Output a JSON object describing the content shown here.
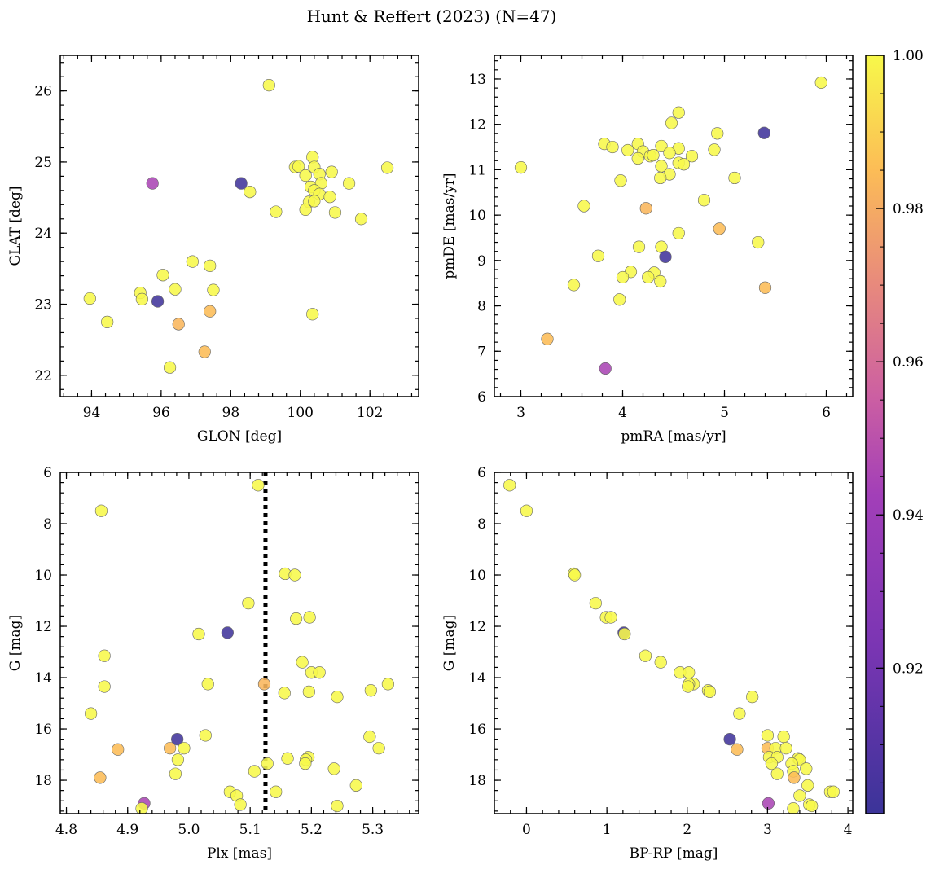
{
  "figure": {
    "title": "Hunt & Reffert (2023) (N=47)"
  },
  "colorbar": {
    "min": 0.901,
    "max": 1.0,
    "ticks": [
      0.92,
      0.94,
      0.96,
      0.98,
      1.0
    ],
    "tick_labels": [
      "0.92",
      "0.94",
      "0.96",
      "0.98",
      "1.00"
    ]
  },
  "chart_data": [
    {
      "type": "scatter",
      "id": "glon-glat",
      "xlabel": "GLON [deg]",
      "ylabel": "GLAT [deg]",
      "xlim": [
        93.1,
        103.4
      ],
      "ylim": [
        21.7,
        26.5
      ],
      "y_inverted": false,
      "xticks": [
        94,
        96,
        98,
        100,
        102
      ],
      "yticks": [
        22,
        23,
        24,
        25,
        26
      ],
      "points": [
        {
          "x": 99.1,
          "y": 26.08,
          "c": 1.0
        },
        {
          "x": 102.5,
          "y": 24.92,
          "c": 1.0
        },
        {
          "x": 99.85,
          "y": 24.93,
          "c": 1.0
        },
        {
          "x": 99.95,
          "y": 24.94,
          "c": 1.0
        },
        {
          "x": 100.35,
          "y": 25.07,
          "c": 1.0
        },
        {
          "x": 100.4,
          "y": 24.93,
          "c": 1.0
        },
        {
          "x": 100.15,
          "y": 24.81,
          "c": 1.0
        },
        {
          "x": 100.55,
          "y": 24.83,
          "c": 1.0
        },
        {
          "x": 100.9,
          "y": 24.86,
          "c": 1.0
        },
        {
          "x": 100.3,
          "y": 24.65,
          "c": 1.0
        },
        {
          "x": 100.6,
          "y": 24.7,
          "c": 1.0
        },
        {
          "x": 100.4,
          "y": 24.6,
          "c": 1.0
        },
        {
          "x": 100.55,
          "y": 24.55,
          "c": 1.0
        },
        {
          "x": 100.85,
          "y": 24.51,
          "c": 1.0
        },
        {
          "x": 101.4,
          "y": 24.7,
          "c": 1.0
        },
        {
          "x": 100.25,
          "y": 24.44,
          "c": 1.0
        },
        {
          "x": 100.4,
          "y": 24.45,
          "c": 1.0
        },
        {
          "x": 100.15,
          "y": 24.33,
          "c": 1.0
        },
        {
          "x": 101.0,
          "y": 24.29,
          "c": 1.0
        },
        {
          "x": 101.75,
          "y": 24.2,
          "c": 1.0
        },
        {
          "x": 99.3,
          "y": 24.3,
          "c": 1.0
        },
        {
          "x": 98.55,
          "y": 24.58,
          "c": 1.0
        },
        {
          "x": 98.3,
          "y": 24.7,
          "c": 0.903
        },
        {
          "x": 95.75,
          "y": 24.7,
          "c": 0.945
        },
        {
          "x": 96.9,
          "y": 23.6,
          "c": 1.0
        },
        {
          "x": 97.4,
          "y": 23.54,
          "c": 1.0
        },
        {
          "x": 96.05,
          "y": 23.41,
          "c": 1.0
        },
        {
          "x": 96.4,
          "y": 23.21,
          "c": 1.0
        },
        {
          "x": 97.5,
          "y": 23.2,
          "c": 1.0
        },
        {
          "x": 95.4,
          "y": 23.16,
          "c": 1.0
        },
        {
          "x": 95.45,
          "y": 23.07,
          "c": 1.0
        },
        {
          "x": 93.95,
          "y": 23.08,
          "c": 1.0
        },
        {
          "x": 95.9,
          "y": 23.04,
          "c": 0.903
        },
        {
          "x": 97.4,
          "y": 22.9,
          "c": 0.985
        },
        {
          "x": 100.35,
          "y": 22.86,
          "c": 1.0
        },
        {
          "x": 94.45,
          "y": 22.75,
          "c": 1.0
        },
        {
          "x": 96.5,
          "y": 22.72,
          "c": 0.983
        },
        {
          "x": 97.25,
          "y": 22.33,
          "c": 0.985
        },
        {
          "x": 96.25,
          "y": 22.11,
          "c": 1.0
        }
      ]
    },
    {
      "type": "scatter",
      "id": "pmra-pmde",
      "xlabel": "pmRA [mas/yr]",
      "ylabel": "pmDE [mas/yr]",
      "xlim": [
        2.74,
        6.26
      ],
      "ylim": [
        6.0,
        13.52
      ],
      "y_inverted": false,
      "xticks": [
        3,
        4,
        5,
        6
      ],
      "yticks": [
        6,
        7,
        8,
        9,
        10,
        11,
        12,
        13
      ],
      "points": [
        {
          "x": 5.95,
          "y": 12.92,
          "c": 1.0
        },
        {
          "x": 4.55,
          "y": 12.26,
          "c": 1.0
        },
        {
          "x": 4.48,
          "y": 12.03,
          "c": 1.0
        },
        {
          "x": 5.39,
          "y": 11.81,
          "c": 0.903
        },
        {
          "x": 4.93,
          "y": 11.8,
          "c": 1.0
        },
        {
          "x": 3.82,
          "y": 11.57,
          "c": 1.0
        },
        {
          "x": 4.15,
          "y": 11.57,
          "c": 1.0
        },
        {
          "x": 3.9,
          "y": 11.5,
          "c": 1.0
        },
        {
          "x": 4.38,
          "y": 11.52,
          "c": 1.0
        },
        {
          "x": 4.55,
          "y": 11.47,
          "c": 1.0
        },
        {
          "x": 4.05,
          "y": 11.43,
          "c": 1.0
        },
        {
          "x": 4.2,
          "y": 11.4,
          "c": 1.0
        },
        {
          "x": 4.9,
          "y": 11.44,
          "c": 1.0
        },
        {
          "x": 4.46,
          "y": 11.37,
          "c": 1.0
        },
        {
          "x": 4.27,
          "y": 11.3,
          "c": 1.0
        },
        {
          "x": 4.3,
          "y": 11.32,
          "c": 1.0
        },
        {
          "x": 4.68,
          "y": 11.3,
          "c": 1.0
        },
        {
          "x": 4.15,
          "y": 11.25,
          "c": 1.0
        },
        {
          "x": 4.55,
          "y": 11.15,
          "c": 1.0
        },
        {
          "x": 4.6,
          "y": 11.12,
          "c": 1.0
        },
        {
          "x": 4.38,
          "y": 11.08,
          "c": 1.0
        },
        {
          "x": 3.0,
          "y": 11.05,
          "c": 1.0
        },
        {
          "x": 4.46,
          "y": 10.9,
          "c": 1.0
        },
        {
          "x": 4.37,
          "y": 10.82,
          "c": 1.0
        },
        {
          "x": 5.1,
          "y": 10.82,
          "c": 1.0
        },
        {
          "x": 3.98,
          "y": 10.76,
          "c": 1.0
        },
        {
          "x": 4.8,
          "y": 10.33,
          "c": 1.0
        },
        {
          "x": 3.62,
          "y": 10.2,
          "c": 1.0
        },
        {
          "x": 4.23,
          "y": 10.15,
          "c": 0.983
        },
        {
          "x": 4.95,
          "y": 9.7,
          "c": 0.985
        },
        {
          "x": 4.55,
          "y": 9.6,
          "c": 1.0
        },
        {
          "x": 5.33,
          "y": 9.4,
          "c": 1.0
        },
        {
          "x": 4.16,
          "y": 9.3,
          "c": 1.0
        },
        {
          "x": 4.38,
          "y": 9.3,
          "c": 1.0
        },
        {
          "x": 3.76,
          "y": 9.1,
          "c": 1.0
        },
        {
          "x": 4.42,
          "y": 9.08,
          "c": 0.903
        },
        {
          "x": 4.08,
          "y": 8.75,
          "c": 1.0
        },
        {
          "x": 4.31,
          "y": 8.73,
          "c": 1.0
        },
        {
          "x": 4.0,
          "y": 8.63,
          "c": 1.0
        },
        {
          "x": 4.25,
          "y": 8.63,
          "c": 1.0
        },
        {
          "x": 4.37,
          "y": 8.54,
          "c": 1.0
        },
        {
          "x": 3.52,
          "y": 8.46,
          "c": 1.0
        },
        {
          "x": 5.4,
          "y": 8.4,
          "c": 0.985
        },
        {
          "x": 3.97,
          "y": 8.14,
          "c": 1.0
        },
        {
          "x": 3.26,
          "y": 7.27,
          "c": 0.985
        },
        {
          "x": 3.83,
          "y": 6.62,
          "c": 0.945
        }
      ]
    },
    {
      "type": "scatter",
      "id": "plx-g",
      "xlabel": "Plx [mas]",
      "ylabel": "G [mag]",
      "xlim": [
        4.79,
        5.375
      ],
      "ylim": [
        6.0,
        19.3
      ],
      "y_inverted": true,
      "xticks": [
        4.8,
        4.9,
        5.0,
        5.1,
        5.2,
        5.3
      ],
      "xtick_labels": [
        "4.8",
        "4.9",
        "5.0",
        "5.1",
        "5.2",
        "5.3"
      ],
      "yticks": [
        6,
        8,
        10,
        12,
        14,
        16,
        18
      ],
      "vline": {
        "x": 5.125,
        "style": "dotted"
      },
      "points": [
        {
          "x": 5.113,
          "y": 6.5,
          "c": 1.0
        },
        {
          "x": 4.857,
          "y": 7.5,
          "c": 1.0
        },
        {
          "x": 5.157,
          "y": 9.95,
          "c": 1.0
        },
        {
          "x": 5.173,
          "y": 10.0,
          "c": 1.0
        },
        {
          "x": 5.097,
          "y": 11.1,
          "c": 1.0
        },
        {
          "x": 5.197,
          "y": 11.65,
          "c": 1.0
        },
        {
          "x": 5.175,
          "y": 11.7,
          "c": 1.0
        },
        {
          "x": 5.063,
          "y": 12.25,
          "c": 0.903
        },
        {
          "x": 5.016,
          "y": 12.3,
          "c": 1.0
        },
        {
          "x": 4.862,
          "y": 13.15,
          "c": 1.0
        },
        {
          "x": 5.185,
          "y": 13.4,
          "c": 1.0
        },
        {
          "x": 5.2,
          "y": 13.8,
          "c": 1.0
        },
        {
          "x": 5.213,
          "y": 13.8,
          "c": 1.0
        },
        {
          "x": 5.123,
          "y": 14.25,
          "c": 0.983
        },
        {
          "x": 5.031,
          "y": 14.25,
          "c": 1.0
        },
        {
          "x": 5.325,
          "y": 14.25,
          "c": 1.0
        },
        {
          "x": 4.862,
          "y": 14.35,
          "c": 1.0
        },
        {
          "x": 5.297,
          "y": 14.5,
          "c": 1.0
        },
        {
          "x": 5.196,
          "y": 14.55,
          "c": 1.0
        },
        {
          "x": 5.156,
          "y": 14.6,
          "c": 1.0
        },
        {
          "x": 5.242,
          "y": 14.75,
          "c": 1.0
        },
        {
          "x": 4.84,
          "y": 15.4,
          "c": 1.0
        },
        {
          "x": 5.027,
          "y": 16.25,
          "c": 1.0
        },
        {
          "x": 5.295,
          "y": 16.3,
          "c": 1.0
        },
        {
          "x": 4.981,
          "y": 16.4,
          "c": 0.903
        },
        {
          "x": 4.969,
          "y": 16.75,
          "c": 0.985
        },
        {
          "x": 4.992,
          "y": 16.75,
          "c": 1.0
        },
        {
          "x": 5.31,
          "y": 16.75,
          "c": 1.0
        },
        {
          "x": 4.884,
          "y": 16.8,
          "c": 0.985
        },
        {
          "x": 5.195,
          "y": 17.1,
          "c": 1.0
        },
        {
          "x": 5.161,
          "y": 17.15,
          "c": 1.0
        },
        {
          "x": 5.191,
          "y": 17.2,
          "c": 1.0
        },
        {
          "x": 4.982,
          "y": 17.2,
          "c": 1.0
        },
        {
          "x": 5.19,
          "y": 17.35,
          "c": 1.0
        },
        {
          "x": 5.128,
          "y": 17.35,
          "c": 1.0
        },
        {
          "x": 5.237,
          "y": 17.55,
          "c": 1.0
        },
        {
          "x": 5.107,
          "y": 17.65,
          "c": 1.0
        },
        {
          "x": 4.978,
          "y": 17.75,
          "c": 1.0
        },
        {
          "x": 4.855,
          "y": 17.9,
          "c": 0.985
        },
        {
          "x": 5.273,
          "y": 18.2,
          "c": 1.0
        },
        {
          "x": 5.067,
          "y": 18.45,
          "c": 1.0
        },
        {
          "x": 5.142,
          "y": 18.45,
          "c": 1.0
        },
        {
          "x": 5.078,
          "y": 18.6,
          "c": 1.0
        },
        {
          "x": 5.084,
          "y": 18.95,
          "c": 1.0
        },
        {
          "x": 5.242,
          "y": 19.0,
          "c": 1.0
        },
        {
          "x": 4.927,
          "y": 18.9,
          "c": 0.945
        },
        {
          "x": 4.923,
          "y": 19.1,
          "c": 1.0
        }
      ]
    },
    {
      "type": "scatter",
      "id": "bprp-g",
      "xlabel": "BP-RP [mag]",
      "ylabel": "G [mag]",
      "xlim": [
        -0.4,
        4.06
      ],
      "ylim": [
        6.0,
        19.3
      ],
      "y_inverted": true,
      "xticks": [
        0,
        1,
        2,
        3,
        4
      ],
      "yticks": [
        6,
        8,
        10,
        12,
        14,
        16,
        18
      ],
      "points": [
        {
          "x": -0.21,
          "y": 6.5,
          "c": 1.0
        },
        {
          "x": 0.0,
          "y": 7.5,
          "c": 1.0
        },
        {
          "x": 0.59,
          "y": 9.95,
          "c": 1.0
        },
        {
          "x": 0.6,
          "y": 10.0,
          "c": 1.0
        },
        {
          "x": 0.86,
          "y": 11.1,
          "c": 1.0
        },
        {
          "x": 0.99,
          "y": 11.65,
          "c": 1.0
        },
        {
          "x": 1.05,
          "y": 11.65,
          "c": 1.0
        },
        {
          "x": 1.21,
          "y": 12.25,
          "c": 0.903
        },
        {
          "x": 1.22,
          "y": 12.3,
          "c": 1.0
        },
        {
          "x": 1.48,
          "y": 13.15,
          "c": 1.0
        },
        {
          "x": 1.67,
          "y": 13.4,
          "c": 1.0
        },
        {
          "x": 1.91,
          "y": 13.8,
          "c": 1.0
        },
        {
          "x": 2.02,
          "y": 13.8,
          "c": 1.0
        },
        {
          "x": 2.08,
          "y": 14.25,
          "c": 1.0
        },
        {
          "x": 2.02,
          "y": 14.25,
          "c": 1.0
        },
        {
          "x": 2.01,
          "y": 14.35,
          "c": 1.0
        },
        {
          "x": 2.26,
          "y": 14.5,
          "c": 1.0
        },
        {
          "x": 2.28,
          "y": 14.55,
          "c": 1.0
        },
        {
          "x": 2.81,
          "y": 14.75,
          "c": 1.0
        },
        {
          "x": 2.65,
          "y": 15.4,
          "c": 1.0
        },
        {
          "x": 2.53,
          "y": 16.4,
          "c": 0.903
        },
        {
          "x": 3.0,
          "y": 16.25,
          "c": 1.0
        },
        {
          "x": 3.2,
          "y": 16.3,
          "c": 1.0
        },
        {
          "x": 3.0,
          "y": 16.75,
          "c": 0.985
        },
        {
          "x": 3.1,
          "y": 16.75,
          "c": 1.0
        },
        {
          "x": 3.23,
          "y": 16.75,
          "c": 1.0
        },
        {
          "x": 2.62,
          "y": 16.8,
          "c": 0.985
        },
        {
          "x": 3.02,
          "y": 17.1,
          "c": 1.0
        },
        {
          "x": 3.12,
          "y": 17.1,
          "c": 1.0
        },
        {
          "x": 3.38,
          "y": 17.15,
          "c": 1.0
        },
        {
          "x": 3.4,
          "y": 17.2,
          "c": 1.0
        },
        {
          "x": 3.05,
          "y": 17.35,
          "c": 1.0
        },
        {
          "x": 3.3,
          "y": 17.35,
          "c": 1.0
        },
        {
          "x": 3.48,
          "y": 17.55,
          "c": 1.0
        },
        {
          "x": 3.32,
          "y": 17.65,
          "c": 1.0
        },
        {
          "x": 3.12,
          "y": 17.75,
          "c": 1.0
        },
        {
          "x": 3.33,
          "y": 17.9,
          "c": 0.985
        },
        {
          "x": 3.5,
          "y": 18.2,
          "c": 1.0
        },
        {
          "x": 3.78,
          "y": 18.45,
          "c": 1.0
        },
        {
          "x": 3.82,
          "y": 18.45,
          "c": 1.0
        },
        {
          "x": 3.4,
          "y": 18.6,
          "c": 1.0
        },
        {
          "x": 3.01,
          "y": 18.9,
          "c": 0.945
        },
        {
          "x": 3.52,
          "y": 18.95,
          "c": 1.0
        },
        {
          "x": 3.55,
          "y": 19.0,
          "c": 1.0
        },
        {
          "x": 3.32,
          "y": 19.1,
          "c": 1.0
        }
      ]
    }
  ]
}
